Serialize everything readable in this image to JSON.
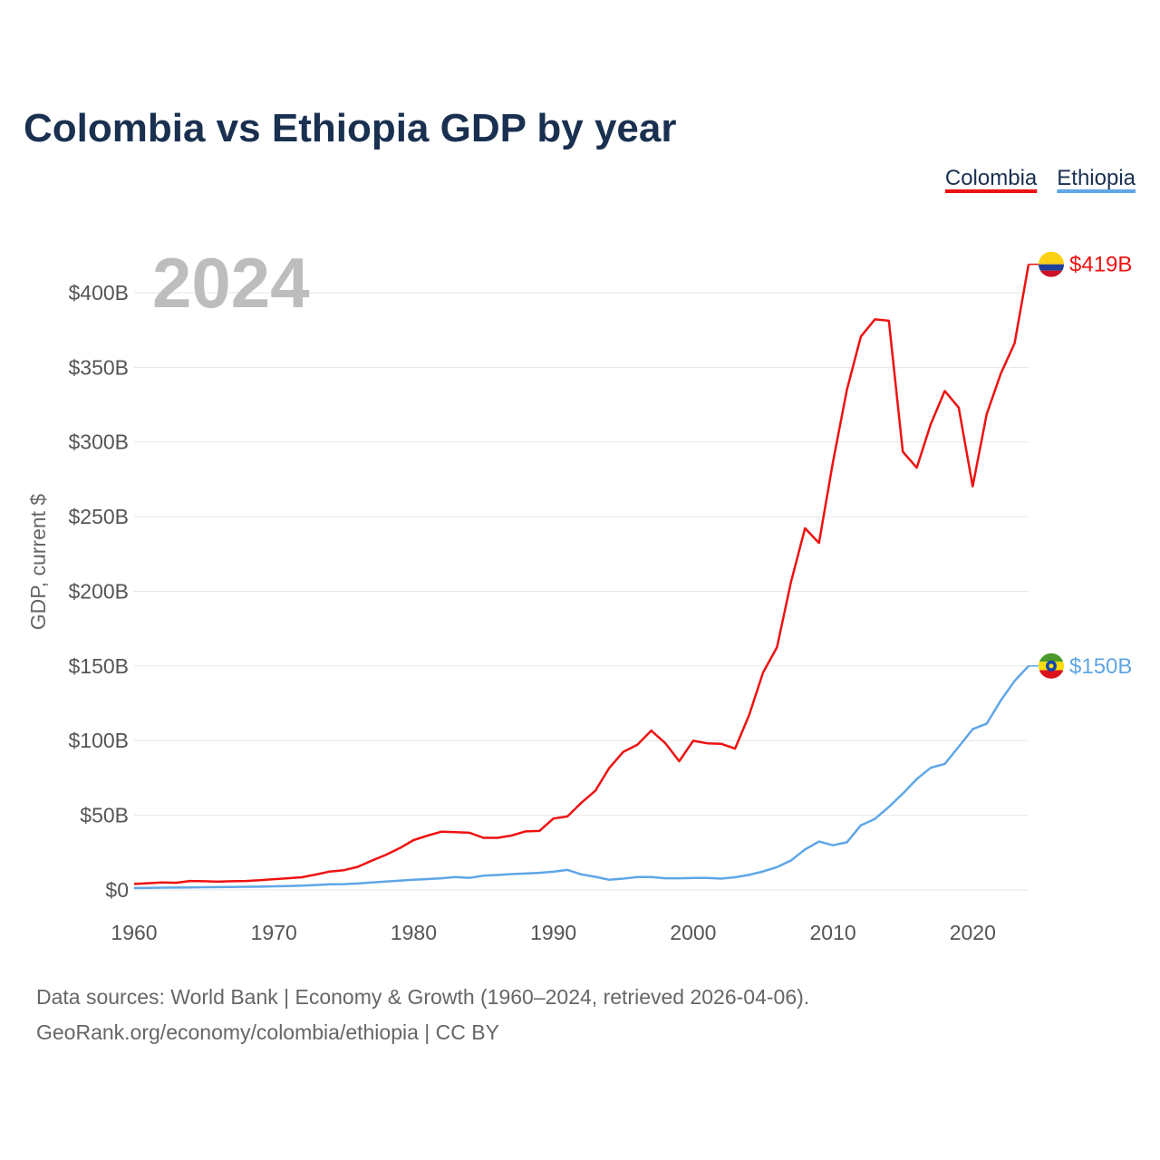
{
  "chart_data": {
    "type": "line",
    "title": "Colombia vs Ethiopia GDP by year",
    "ylabel": "GDP, current $",
    "xlabel": "",
    "year_watermark": "2024",
    "xlim": [
      1960,
      2024
    ],
    "ylim": [
      0,
      420
    ],
    "y_ticks": [
      0,
      50,
      100,
      150,
      200,
      250,
      300,
      350,
      400
    ],
    "y_tick_labels": [
      "$0",
      "$50B",
      "$100B",
      "$150B",
      "$200B",
      "$250B",
      "$300B",
      "$350B",
      "$400B"
    ],
    "x_ticks": [
      1960,
      1970,
      1980,
      1990,
      2000,
      2010,
      2020
    ],
    "x_tick_labels": [
      "1960",
      "1970",
      "1980",
      "1990",
      "2000",
      "2010",
      "2020"
    ],
    "grid": true,
    "legend_position": "top-right",
    "units": "billions USD",
    "x": [
      1960,
      1961,
      1962,
      1963,
      1964,
      1965,
      1966,
      1967,
      1968,
      1969,
      1970,
      1971,
      1972,
      1973,
      1974,
      1975,
      1976,
      1977,
      1978,
      1979,
      1980,
      1981,
      1982,
      1983,
      1984,
      1985,
      1986,
      1987,
      1988,
      1989,
      1990,
      1991,
      1992,
      1993,
      1994,
      1995,
      1996,
      1997,
      1998,
      1999,
      2000,
      2001,
      2002,
      2003,
      2004,
      2005,
      2006,
      2007,
      2008,
      2009,
      2010,
      2011,
      2012,
      2013,
      2014,
      2015,
      2016,
      2017,
      2018,
      2019,
      2020,
      2021,
      2022,
      2023,
      2024
    ],
    "series": [
      {
        "name": "Colombia",
        "color": "#ee1111",
        "end_label": "$419B",
        "flag": "colombia-flag",
        "values": [
          4.0,
          4.5,
          5.0,
          4.8,
          6.0,
          5.8,
          5.5,
          5.8,
          6.0,
          6.5,
          7.2,
          7.8,
          8.5,
          10.3,
          12.3,
          13.2,
          15.5,
          19.6,
          23.4,
          28.0,
          33.4,
          36.4,
          39.0,
          38.7,
          38.3,
          34.9,
          34.9,
          36.4,
          39.2,
          39.5,
          47.8,
          49.2,
          58.4,
          66.4,
          81.7,
          92.5,
          97.2,
          106.7,
          98.4,
          86.2,
          99.9,
          98.2,
          97.9,
          94.6,
          117.1,
          145.6,
          162.6,
          206.2,
          242.2,
          232.4,
          286.5,
          334.9,
          370.6,
          382.1,
          381.2,
          293.5,
          282.8,
          311.9,
          334.2,
          323.0,
          270.3,
          318.5,
          345.6,
          366.2,
          419.0
        ]
      },
      {
        "name": "Ethiopia",
        "color": "#5ea6e6",
        "end_label": "$150B",
        "flag": "ethiopia-flag",
        "values": [
          1.3,
          1.4,
          1.5,
          1.6,
          1.7,
          1.8,
          1.9,
          2.0,
          2.1,
          2.2,
          2.4,
          2.6,
          2.9,
          3.3,
          3.8,
          3.9,
          4.3,
          5.0,
          5.6,
          6.2,
          6.8,
          7.3,
          7.8,
          8.6,
          8.1,
          9.5,
          10.0,
          10.6,
          11.0,
          11.5,
          12.2,
          13.4,
          10.4,
          8.8,
          6.8,
          7.6,
          8.6,
          8.6,
          7.8,
          7.8,
          8.0,
          8.0,
          7.6,
          8.5,
          10.1,
          12.4,
          15.3,
          19.7,
          27.1,
          32.4,
          29.9,
          31.9,
          43.3,
          47.6,
          55.6,
          64.5,
          74.3,
          81.8,
          84.4,
          95.9,
          107.7,
          111.3,
          126.8,
          140.0,
          150.0
        ]
      }
    ]
  },
  "source": {
    "line1": "Data sources: World Bank | Economy & Growth (1960–2024, retrieved 2026-04-06).",
    "line2": "GeoRank.org/economy/colombia/ethiopia | CC BY"
  }
}
